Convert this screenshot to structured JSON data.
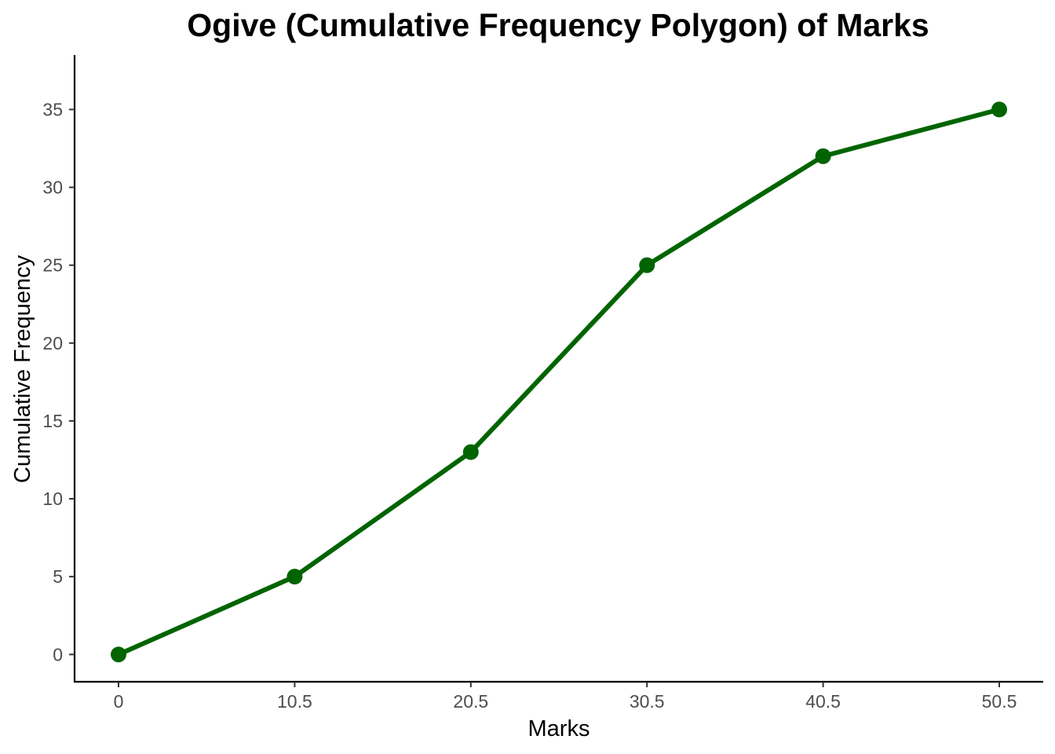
{
  "chart_data": {
    "type": "line",
    "title": "Ogive (Cumulative Frequency Polygon) of Marks",
    "xlabel": "Marks",
    "ylabel": "Cumulative Frequency",
    "x": [
      "0",
      "10.5",
      "20.5",
      "30.5",
      "40.5",
      "50.5"
    ],
    "series": [
      {
        "values": [
          0,
          5,
          13,
          25,
          32,
          35
        ],
        "color": "#006400"
      }
    ],
    "yticks": [
      0,
      5,
      10,
      15,
      20,
      25,
      30,
      35
    ],
    "ylim": [
      -1.75,
      38.5
    ],
    "grid": false,
    "legend": "none"
  }
}
